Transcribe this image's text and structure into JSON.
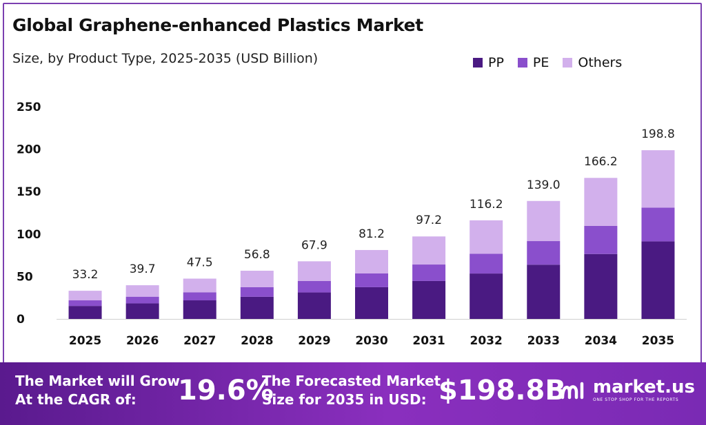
{
  "header": {
    "title": "Global Graphene-enhanced Plastics Market",
    "subtitle": "Size, by Product Type, 2025-2035 (USD Billion)"
  },
  "chart_data": {
    "type": "bar",
    "stacked": true,
    "title": "Global Graphene-enhanced Plastics Market",
    "subtitle": "Size, by Product Type, 2025-2035 (USD Billion)",
    "xlabel": "",
    "ylabel": "",
    "ylim": [
      0,
      250
    ],
    "yticks": [
      0,
      50,
      100,
      150,
      200,
      250
    ],
    "grid": false,
    "legend_position": "top-right",
    "categories": [
      "2025",
      "2026",
      "2027",
      "2028",
      "2029",
      "2030",
      "2031",
      "2032",
      "2033",
      "2034",
      "2035"
    ],
    "series": [
      {
        "name": "PP",
        "color": "#4a1a82",
        "values": [
          15.3,
          18.3,
          21.9,
          26.1,
          31.2,
          37.4,
          44.7,
          53.5,
          63.9,
          76.5,
          91.4
        ]
      },
      {
        "name": "PE",
        "color": "#8a4fcc",
        "values": [
          6.6,
          7.9,
          9.5,
          11.4,
          13.6,
          16.2,
          19.4,
          23.2,
          27.8,
          33.2,
          39.8
        ]
      },
      {
        "name": "Others",
        "color": "#d2b0ec",
        "values": [
          11.3,
          13.5,
          16.1,
          19.3,
          23.1,
          27.6,
          33.1,
          39.5,
          47.3,
          56.5,
          67.6
        ]
      }
    ],
    "totals": [
      33.2,
      39.7,
      47.5,
      56.8,
      67.9,
      81.2,
      97.2,
      116.2,
      139.0,
      166.2,
      198.8
    ],
    "total_labels": [
      "33.2",
      "39.7",
      "47.5",
      "56.8",
      "67.9",
      "81.2",
      "97.2",
      "116.2",
      "139.0",
      "166.2",
      "198.8"
    ]
  },
  "banner": {
    "cagr_text_line1": "The Market will Grow",
    "cagr_text_line2": "At the CAGR of:",
    "cagr_value": "19.6%",
    "forecast_text_line1": "The Forecasted Market",
    "forecast_text_line2": "Size for 2035 in USD:",
    "forecast_value": "$198.8B",
    "brand_name": "market.us",
    "brand_tagline": "ONE STOP SHOP FOR THE REPORTS",
    "brand_icon": "market-us-logo-icon"
  },
  "colors": {
    "accent": "#7b3fb0",
    "banner_start": "#5a1a8e",
    "banner_end": "#8a2fbe"
  }
}
